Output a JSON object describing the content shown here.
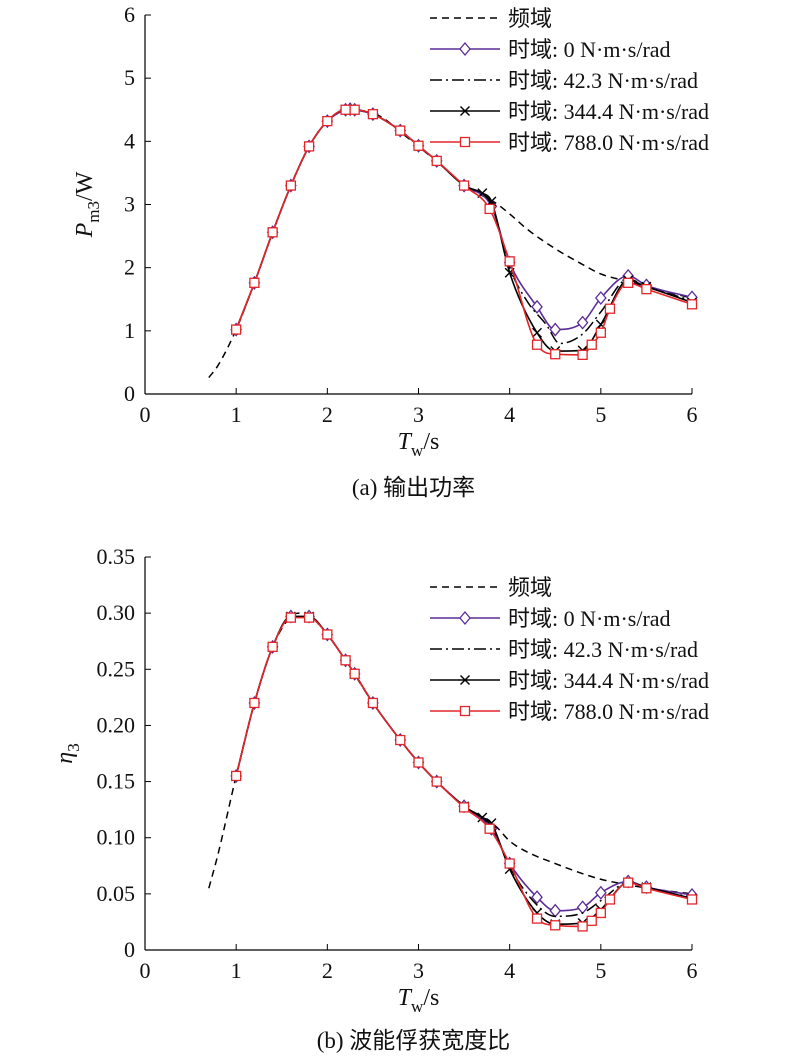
{
  "chart_data": [
    {
      "type": "line",
      "caption": "(a) 输出功率",
      "xlabel": "T_w/s",
      "ylabel": "P_m3/W",
      "xlim": [
        0,
        6
      ],
      "ylim": [
        0,
        6
      ],
      "xticks": [
        "0",
        "1",
        "2",
        "3",
        "4",
        "5",
        "6"
      ],
      "yticks": [
        "0",
        "1",
        "2",
        "3",
        "4",
        "5",
        "6"
      ],
      "legend_position": "top-right",
      "grid": false,
      "series": [
        {
          "name": "频域",
          "style": "dashed",
          "color": "#000000",
          "marker": "none",
          "points": [
            [
              0.7,
              0.26
            ],
            [
              0.8,
              0.45
            ],
            [
              1.0,
              1.02
            ],
            [
              1.2,
              1.76
            ],
            [
              1.4,
              2.56
            ],
            [
              1.6,
              3.3
            ],
            [
              1.8,
              3.92
            ],
            [
              2.0,
              4.32
            ],
            [
              2.2,
              4.5
            ],
            [
              2.3,
              4.51
            ],
            [
              2.4,
              4.48
            ],
            [
              2.6,
              4.38
            ],
            [
              2.8,
              4.15
            ],
            [
              3.0,
              3.92
            ],
            [
              3.2,
              3.68
            ],
            [
              3.5,
              3.32
            ],
            [
              3.7,
              3.14
            ],
            [
              3.85,
              3.02
            ],
            [
              4.0,
              2.85
            ],
            [
              4.2,
              2.6
            ],
            [
              4.5,
              2.3
            ],
            [
              4.8,
              2.05
            ],
            [
              5.0,
              1.9
            ],
            [
              5.3,
              1.78
            ],
            [
              5.6,
              1.66
            ],
            [
              6.0,
              1.52
            ]
          ]
        },
        {
          "name": "时域: 0 N·m·s/rad",
          "style": "solid",
          "color": "#5b2c98",
          "marker": "diamond",
          "points": [
            [
              1.0,
              1.02
            ],
            [
              1.2,
              1.76
            ],
            [
              1.4,
              2.56
            ],
            [
              1.6,
              3.3
            ],
            [
              1.8,
              3.92
            ],
            [
              2.0,
              4.32
            ],
            [
              2.2,
              4.5
            ],
            [
              2.25,
              4.51
            ],
            [
              2.3,
              4.5
            ],
            [
              2.5,
              4.43
            ],
            [
              2.8,
              4.17
            ],
            [
              3.0,
              3.93
            ],
            [
              3.2,
              3.69
            ],
            [
              3.5,
              3.3
            ],
            [
              3.8,
              2.97
            ],
            [
              4.0,
              2.08
            ],
            [
              4.3,
              1.38
            ],
            [
              4.5,
              1.02
            ],
            [
              4.8,
              1.13
            ],
            [
              5.0,
              1.52
            ],
            [
              5.3,
              1.87
            ],
            [
              5.5,
              1.72
            ],
            [
              6.0,
              1.53
            ]
          ]
        },
        {
          "name": "时域: 42.3 N·m·s/rad",
          "style": "dashdot",
          "color": "#000000",
          "marker": "none",
          "points": [
            [
              1.0,
              1.02
            ],
            [
              1.2,
              1.76
            ],
            [
              1.4,
              2.56
            ],
            [
              1.6,
              3.3
            ],
            [
              1.8,
              3.92
            ],
            [
              2.0,
              4.32
            ],
            [
              2.2,
              4.5
            ],
            [
              2.3,
              4.5
            ],
            [
              2.5,
              4.43
            ],
            [
              2.8,
              4.17
            ],
            [
              3.0,
              3.93
            ],
            [
              3.2,
              3.69
            ],
            [
              3.5,
              3.3
            ],
            [
              3.8,
              3.0
            ],
            [
              4.0,
              2.0
            ],
            [
              4.2,
              1.45
            ],
            [
              4.4,
              1.1
            ],
            [
              4.55,
              0.8
            ],
            [
              4.8,
              0.95
            ],
            [
              5.0,
              1.3
            ],
            [
              5.3,
              1.82
            ],
            [
              5.5,
              1.7
            ],
            [
              6.0,
              1.48
            ]
          ]
        },
        {
          "name": "时域: 344.4 N·m·s/rad",
          "style": "solid",
          "color": "#000000",
          "marker": "x",
          "points": [
            [
              1.0,
              1.02
            ],
            [
              1.2,
              1.76
            ],
            [
              1.4,
              2.56
            ],
            [
              1.6,
              3.3
            ],
            [
              1.8,
              3.92
            ],
            [
              2.0,
              4.32
            ],
            [
              2.2,
              4.5
            ],
            [
              2.3,
              4.5
            ],
            [
              2.5,
              4.43
            ],
            [
              2.8,
              4.17
            ],
            [
              3.0,
              3.93
            ],
            [
              3.2,
              3.69
            ],
            [
              3.5,
              3.3
            ],
            [
              3.7,
              3.18
            ],
            [
              3.8,
              3.05
            ],
            [
              4.0,
              1.92
            ],
            [
              4.3,
              0.97
            ],
            [
              4.5,
              0.68
            ],
            [
              4.8,
              0.69
            ],
            [
              5.0,
              1.1
            ],
            [
              5.3,
              1.8
            ],
            [
              5.5,
              1.7
            ],
            [
              6.0,
              1.45
            ]
          ]
        },
        {
          "name": "时域: 788.0 N·m·s/rad",
          "style": "solid",
          "color": "#e3262a",
          "marker": "square",
          "points": [
            [
              1.0,
              1.02
            ],
            [
              1.2,
              1.76
            ],
            [
              1.4,
              2.56
            ],
            [
              1.6,
              3.3
            ],
            [
              1.8,
              3.92
            ],
            [
              2.0,
              4.32
            ],
            [
              2.2,
              4.5
            ],
            [
              2.3,
              4.5
            ],
            [
              2.5,
              4.43
            ],
            [
              2.8,
              4.17
            ],
            [
              3.0,
              3.93
            ],
            [
              3.2,
              3.69
            ],
            [
              3.5,
              3.3
            ],
            [
              3.78,
              2.93
            ],
            [
              4.0,
              2.1
            ],
            [
              4.3,
              0.78
            ],
            [
              4.5,
              0.63
            ],
            [
              4.8,
              0.62
            ],
            [
              4.9,
              0.78
            ],
            [
              5.0,
              0.97
            ],
            [
              5.1,
              1.35
            ],
            [
              5.3,
              1.76
            ],
            [
              5.5,
              1.66
            ],
            [
              6.0,
              1.42
            ]
          ]
        }
      ]
    },
    {
      "type": "line",
      "caption": "(b) 波能俘获宽度比",
      "xlabel": "T_w/s",
      "ylabel": "η_3",
      "xlim": [
        0,
        6
      ],
      "ylim": [
        0,
        0.35
      ],
      "xticks": [
        "0",
        "1",
        "2",
        "3",
        "4",
        "5",
        "6"
      ],
      "yticks": [
        "0",
        "0.05",
        "0.10",
        "0.15",
        "0.20",
        "0.25",
        "0.30",
        "0.35"
      ],
      "legend_position": "top-right",
      "grid": false,
      "series": [
        {
          "name": "频域",
          "style": "dashed",
          "color": "#000000",
          "marker": "none",
          "points": [
            [
              0.7,
              0.055
            ],
            [
              0.8,
              0.085
            ],
            [
              1.0,
              0.155
            ],
            [
              1.2,
              0.22
            ],
            [
              1.4,
              0.27
            ],
            [
              1.6,
              0.297
            ],
            [
              1.7,
              0.3
            ],
            [
              1.8,
              0.298
            ],
            [
              2.0,
              0.281
            ],
            [
              2.2,
              0.258
            ],
            [
              2.5,
              0.22
            ],
            [
              2.8,
              0.187
            ],
            [
              3.0,
              0.167
            ],
            [
              3.2,
              0.15
            ],
            [
              3.5,
              0.128
            ],
            [
              3.7,
              0.118
            ],
            [
              3.85,
              0.11
            ],
            [
              4.0,
              0.097
            ],
            [
              4.2,
              0.087
            ],
            [
              4.5,
              0.077
            ],
            [
              4.8,
              0.068
            ],
            [
              5.0,
              0.063
            ],
            [
              5.3,
              0.058
            ],
            [
              5.6,
              0.054
            ],
            [
              6.0,
              0.05
            ]
          ]
        },
        {
          "name": "时域: 0 N·m·s/rad",
          "style": "solid",
          "color": "#5b2c98",
          "marker": "diamond",
          "points": [
            [
              1.0,
              0.155
            ],
            [
              1.2,
              0.22
            ],
            [
              1.4,
              0.27
            ],
            [
              1.6,
              0.297
            ],
            [
              1.8,
              0.297
            ],
            [
              2.0,
              0.281
            ],
            [
              2.2,
              0.258
            ],
            [
              2.3,
              0.246
            ],
            [
              2.5,
              0.22
            ],
            [
              2.8,
              0.187
            ],
            [
              3.0,
              0.167
            ],
            [
              3.2,
              0.15
            ],
            [
              3.5,
              0.128
            ],
            [
              3.8,
              0.108
            ],
            [
              4.0,
              0.077
            ],
            [
              4.3,
              0.047
            ],
            [
              4.5,
              0.035
            ],
            [
              4.8,
              0.038
            ],
            [
              5.0,
              0.051
            ],
            [
              5.3,
              0.061
            ],
            [
              5.5,
              0.056
            ],
            [
              6.0,
              0.049
            ]
          ]
        },
        {
          "name": "时域: 42.3 N·m·s/rad",
          "style": "dashdot",
          "color": "#000000",
          "marker": "none",
          "points": [
            [
              1.0,
              0.155
            ],
            [
              1.2,
              0.22
            ],
            [
              1.4,
              0.27
            ],
            [
              1.6,
              0.297
            ],
            [
              1.8,
              0.297
            ],
            [
              2.0,
              0.281
            ],
            [
              2.2,
              0.258
            ],
            [
              2.3,
              0.246
            ],
            [
              2.5,
              0.22
            ],
            [
              2.8,
              0.187
            ],
            [
              3.0,
              0.167
            ],
            [
              3.2,
              0.15
            ],
            [
              3.5,
              0.128
            ],
            [
              3.8,
              0.11
            ],
            [
              4.0,
              0.074
            ],
            [
              4.3,
              0.04
            ],
            [
              4.5,
              0.03
            ],
            [
              4.8,
              0.033
            ],
            [
              5.0,
              0.044
            ],
            [
              5.3,
              0.06
            ],
            [
              5.5,
              0.055
            ],
            [
              6.0,
              0.047
            ]
          ]
        },
        {
          "name": "时域: 344.4 N·m·s/rad",
          "style": "solid",
          "color": "#000000",
          "marker": "x",
          "points": [
            [
              1.0,
              0.155
            ],
            [
              1.2,
              0.22
            ],
            [
              1.4,
              0.27
            ],
            [
              1.6,
              0.297
            ],
            [
              1.8,
              0.297
            ],
            [
              2.0,
              0.281
            ],
            [
              2.2,
              0.258
            ],
            [
              2.3,
              0.246
            ],
            [
              2.5,
              0.22
            ],
            [
              2.8,
              0.187
            ],
            [
              3.0,
              0.167
            ],
            [
              3.2,
              0.15
            ],
            [
              3.5,
              0.128
            ],
            [
              3.7,
              0.118
            ],
            [
              3.8,
              0.113
            ],
            [
              4.0,
              0.072
            ],
            [
              4.3,
              0.033
            ],
            [
              4.5,
              0.023
            ],
            [
              4.8,
              0.024
            ],
            [
              5.0,
              0.036
            ],
            [
              5.3,
              0.06
            ],
            [
              5.5,
              0.056
            ],
            [
              6.0,
              0.046
            ]
          ]
        },
        {
          "name": "时域: 788.0 N·m·s/rad",
          "style": "solid",
          "color": "#e3262a",
          "marker": "square",
          "points": [
            [
              1.0,
              0.155
            ],
            [
              1.2,
              0.22
            ],
            [
              1.4,
              0.27
            ],
            [
              1.6,
              0.296
            ],
            [
              1.8,
              0.296
            ],
            [
              2.0,
              0.281
            ],
            [
              2.2,
              0.258
            ],
            [
              2.3,
              0.246
            ],
            [
              2.5,
              0.22
            ],
            [
              2.8,
              0.187
            ],
            [
              3.0,
              0.167
            ],
            [
              3.2,
              0.15
            ],
            [
              3.5,
              0.127
            ],
            [
              3.78,
              0.108
            ],
            [
              4.0,
              0.077
            ],
            [
              4.3,
              0.028
            ],
            [
              4.5,
              0.022
            ],
            [
              4.8,
              0.021
            ],
            [
              4.9,
              0.026
            ],
            [
              5.0,
              0.033
            ],
            [
              5.1,
              0.045
            ],
            [
              5.3,
              0.06
            ],
            [
              5.5,
              0.055
            ],
            [
              6.0,
              0.045
            ]
          ]
        }
      ]
    }
  ]
}
